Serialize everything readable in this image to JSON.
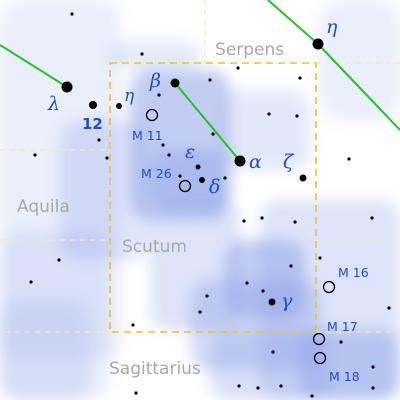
{
  "colors": {
    "background": "#ffffff",
    "milky_way": "#8fa3e8",
    "boundary": "#ffe6b3",
    "border": "#f2c12e",
    "line": "#22c322",
    "star": "#000000",
    "label": "#1f4fbf",
    "constellation": "#a9a9a9"
  },
  "constellations": [
    {
      "key": "serpens",
      "name": "Serpens"
    },
    {
      "key": "aquila",
      "name": "Aquila"
    },
    {
      "key": "scutum",
      "name": "Scutum"
    },
    {
      "key": "sagittarius",
      "name": "Sagittarius"
    }
  ],
  "star_labels": [
    {
      "key": "eta-serpens",
      "text": "η"
    },
    {
      "key": "lambda",
      "text": "λ"
    },
    {
      "key": "12",
      "text": "12"
    },
    {
      "key": "eta",
      "text": "η"
    },
    {
      "key": "beta",
      "text": "β"
    },
    {
      "key": "epsilon",
      "text": "ε"
    },
    {
      "key": "delta",
      "text": "δ"
    },
    {
      "key": "alpha",
      "text": "α"
    },
    {
      "key": "zeta",
      "text": "ζ"
    },
    {
      "key": "gamma",
      "text": "γ"
    }
  ],
  "deep_sky": [
    {
      "key": "m11",
      "text": "M 11"
    },
    {
      "key": "m26",
      "text": "M 26"
    },
    {
      "key": "m16",
      "text": "M 16"
    },
    {
      "key": "m17",
      "text": "M 17"
    },
    {
      "key": "m18",
      "text": "M 18"
    }
  ]
}
